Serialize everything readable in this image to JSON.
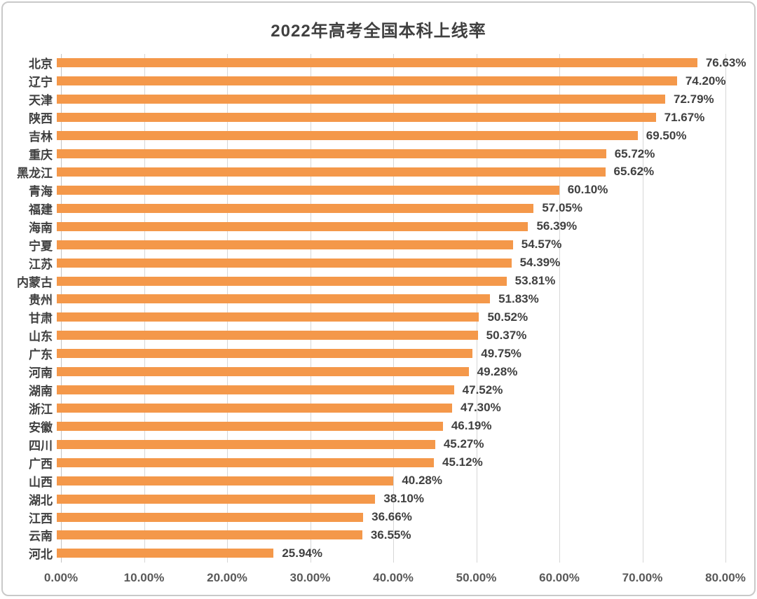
{
  "chart_data": {
    "type": "bar",
    "orientation": "horizontal",
    "title": "2022年高考全国本科上线率",
    "categories": [
      "北京",
      "辽宁",
      "天津",
      "陕西",
      "吉林",
      "重庆",
      "黑龙江",
      "青海",
      "福建",
      "海南",
      "宁夏",
      "江苏",
      "内蒙古",
      "贵州",
      "甘肃",
      "山东",
      "广东",
      "河南",
      "湖南",
      "浙江",
      "安徽",
      "四川",
      "广西",
      "山西",
      "湖北",
      "江西",
      "云南",
      "河北"
    ],
    "values": [
      76.63,
      74.2,
      72.79,
      71.67,
      69.5,
      65.72,
      65.62,
      60.1,
      57.05,
      56.39,
      54.57,
      54.39,
      53.81,
      51.83,
      50.52,
      50.37,
      49.75,
      49.28,
      47.52,
      47.3,
      46.19,
      45.27,
      45.12,
      40.28,
      38.1,
      36.66,
      36.55,
      25.94
    ],
    "value_labels": [
      "76.63%",
      "74.20%",
      "72.79%",
      "71.67%",
      "69.50%",
      "65.72%",
      "65.62%",
      "60.10%",
      "57.05%",
      "56.39%",
      "54.57%",
      "54.39%",
      "53.81%",
      "51.83%",
      "50.52%",
      "50.37%",
      "49.75%",
      "49.28%",
      "47.52%",
      "47.30%",
      "46.19%",
      "45.27%",
      "45.12%",
      "40.28%",
      "38.10%",
      "36.66%",
      "36.55%",
      "25.94%"
    ],
    "x_ticks": [
      "0.00%",
      "10.00%",
      "20.00%",
      "30.00%",
      "40.00%",
      "50.00%",
      "60.00%",
      "70.00%",
      "80.00%"
    ],
    "xlim": [
      0,
      80
    ],
    "xlabel": "",
    "ylabel": "",
    "grid": true,
    "legend": "none",
    "bar_color": "#f4984a",
    "gridline_color": "#d6d6d6",
    "title_color": "#404040",
    "label_color": "#3f3f3f",
    "tick_color": "#595959"
  }
}
